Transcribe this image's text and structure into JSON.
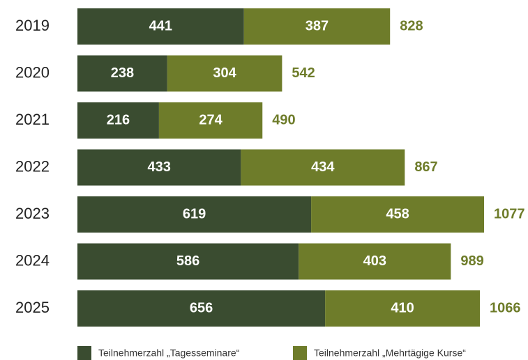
{
  "chart_data": {
    "type": "stacked-bar-horizontal",
    "categories": [
      "2019",
      "2020",
      "2021",
      "2022",
      "2023",
      "2024",
      "2025"
    ],
    "series": [
      {
        "name": "Teilnehmerzahl „Tagesseminare“",
        "color": "#3a4c30",
        "values": [
          441,
          238,
          216,
          433,
          619,
          586,
          656
        ]
      },
      {
        "name": "Teilnehmerzahl „Mehrtägige Kurse“",
        "color": "#6e7c2a",
        "values": [
          387,
          304,
          274,
          434,
          458,
          403,
          410
        ]
      }
    ],
    "totals": [
      828,
      542,
      490,
      867,
      1077,
      989,
      1066
    ],
    "totals_color": "#6e7c2a"
  }
}
